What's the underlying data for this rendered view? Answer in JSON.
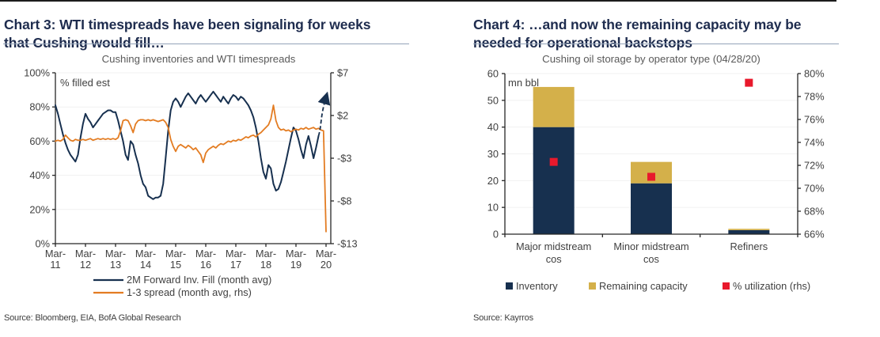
{
  "page": {
    "top_border_color": "#1c1c1c"
  },
  "left_panel": {
    "heading": "Chart 3: WTI timespreads have been signaling for weeks that Cushing would fill…",
    "source": "Source: Bloomberg, EIA, BofA Global Research"
  },
  "right_panel": {
    "heading": "Chart 4: …and now the remaining capacity may be needed for operational backstops",
    "source": "Source: Kayrros"
  },
  "chart_data": [
    {
      "type": "line",
      "title": "Cushing inventories and WTI timespreads",
      "inner_label": "% filled est",
      "x_start": "Mar-2011",
      "x_frequency": "monthly",
      "x_tick_labels": [
        "Mar-11",
        "Mar-12",
        "Mar-13",
        "Mar-14",
        "Mar-15",
        "Mar-16",
        "Mar-17",
        "Mar-18",
        "Mar-19",
        "Mar-20"
      ],
      "left_axis": {
        "ticks": [
          "100%",
          "80%",
          "60%",
          "40%",
          "20%",
          "0%"
        ],
        "min": 0,
        "max": 100
      },
      "right_axis": {
        "ticks": [
          "$7",
          "$2",
          "-$3",
          "-$8",
          "-$13"
        ],
        "min": -13,
        "max": 7
      },
      "grid": "horizontal-light",
      "legend_position": "bottom",
      "series": [
        {
          "name": "2M Forward Inv. Fill (month avg)",
          "axis": "left",
          "color": "#17304f",
          "values": [
            81,
            76,
            70,
            64,
            59,
            55,
            52,
            50,
            48,
            52,
            62,
            70,
            76,
            73,
            71,
            68,
            70,
            72,
            74,
            76,
            77,
            78,
            78,
            77,
            77,
            72,
            66,
            60,
            52,
            49,
            60,
            58,
            52,
            47,
            40,
            35,
            33,
            28,
            27,
            26,
            27,
            27,
            28,
            35,
            50,
            66,
            78,
            83,
            85,
            83,
            80,
            83,
            86,
            88,
            86,
            84,
            82,
            85,
            87,
            85,
            83,
            85,
            87,
            89,
            87,
            85,
            83,
            86,
            84,
            82,
            85,
            87,
            86,
            84,
            86,
            85,
            83,
            81,
            78,
            74,
            68,
            60,
            50,
            42,
            38,
            46,
            44,
            35,
            31,
            32,
            36,
            42,
            48,
            55,
            62,
            68,
            66,
            61,
            55,
            50,
            58,
            63,
            57,
            50,
            56,
            63
          ]
        },
        {
          "name": "1-3 spread (month avg, rhs)",
          "axis": "right",
          "color": "#e37c22",
          "values": [
            -1.0,
            -0.9,
            -1.0,
            -0.8,
            -0.3,
            -0.6,
            -0.9,
            -1.0,
            -0.8,
            -0.9,
            -0.9,
            -0.8,
            -0.9,
            -0.8,
            -0.7,
            -0.9,
            -0.8,
            -0.7,
            -0.8,
            -0.7,
            -0.8,
            -0.7,
            -0.8,
            -0.7,
            -0.8,
            -0.6,
            0.2,
            1.4,
            1.5,
            1.4,
            0.8,
            0.0,
            1.0,
            1.4,
            1.5,
            1.5,
            1.4,
            1.5,
            1.4,
            1.5,
            1.4,
            1.3,
            1.4,
            1.5,
            1.2,
            0.6,
            -0.8,
            -1.6,
            -2.2,
            -1.6,
            -1.4,
            -1.6,
            -1.8,
            -1.5,
            -1.7,
            -2.0,
            -1.8,
            -2.2,
            -2.6,
            -3.5,
            -2.4,
            -2.0,
            -1.8,
            -1.6,
            -1.8,
            -1.5,
            -1.3,
            -1.4,
            -1.2,
            -1.0,
            -1.1,
            -0.9,
            -1.0,
            -0.8,
            -0.9,
            -0.7,
            -0.5,
            -0.6,
            -0.4,
            -0.3,
            -0.5,
            -0.2,
            0.0,
            0.3,
            0.6,
            0.9,
            1.6,
            3.2,
            1.4,
            0.6,
            0.3,
            0.4,
            0.2,
            0.3,
            0.1,
            0.3,
            0.4,
            0.3,
            0.5,
            0.4,
            0.6,
            0.4,
            0.5,
            0.6,
            0.4,
            0.5,
            0.3,
            0.2,
            -11.6
          ]
        }
      ],
      "forecast_arrow": {
        "style": "dashed",
        "color": "#17304f",
        "start_month": "Dec-19",
        "end_month": "Apr-20",
        "from_value": 63,
        "to_value": 88
      }
    },
    {
      "type": "bar",
      "subtype": "stacked-bar-with-points",
      "title": "Cushing oil storage by operator type (04/28/20)",
      "inner_label": "mn bbl",
      "categories": [
        "Major midstream cos",
        "Minor midstream cos",
        "Refiners"
      ],
      "left_axis": {
        "ticks": [
          "60",
          "50",
          "40",
          "30",
          "20",
          "10",
          "0"
        ],
        "min": 0,
        "max": 60
      },
      "right_axis": {
        "ticks": [
          "80%",
          "78%",
          "76%",
          "74%",
          "72%",
          "70%",
          "68%",
          "66%"
        ],
        "min": 66,
        "max": 80
      },
      "grid": "horizontal-light",
      "legend_position": "bottom",
      "series": [
        {
          "name": "Inventory",
          "type": "bar",
          "axis": "left",
          "color": "#17304f",
          "values": [
            40,
            19,
            1.5
          ]
        },
        {
          "name": "Remaining capacity",
          "type": "bar",
          "axis": "left",
          "color": "#d4b04a",
          "values": [
            15,
            8,
            0.5
          ]
        },
        {
          "name": "% utilization (rhs)",
          "type": "point",
          "axis": "right",
          "marker": "square",
          "color": "#e8192c",
          "values": [
            72.3,
            71.0,
            79.2
          ]
        }
      ]
    }
  ]
}
